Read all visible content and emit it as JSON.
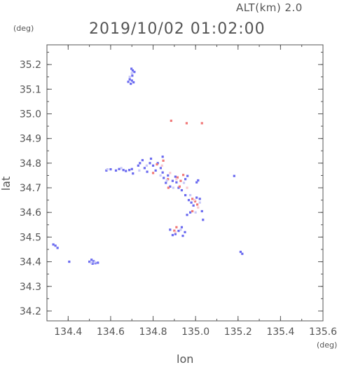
{
  "chart_data": {
    "type": "scatter",
    "title": "2019/10/02 01:02:00",
    "altitude_label": "ALT(km)  2.0",
    "xlabel": "lon",
    "ylabel": "lat",
    "xunit": "(deg)",
    "yunit": "(deg)",
    "xlim": [
      134.3,
      135.6
    ],
    "ylim": [
      34.16,
      35.28
    ],
    "xticks": [
      "134.4",
      "134.6",
      "134.8",
      "135.0",
      "135.2",
      "135.4",
      "135.6"
    ],
    "yticks": [
      "34.2",
      "34.3",
      "34.4",
      "34.5",
      "34.6",
      "34.7",
      "34.8",
      "34.9",
      "35.0",
      "35.1",
      "35.2"
    ],
    "colors": {
      "blue": "#6a6af0",
      "red": "#f07878",
      "pale_blue": "#c8c8f8",
      "pink": "#f8c8d0",
      "axis": "#555555"
    },
    "series": [
      {
        "color": "blue",
        "points": [
          [
            134.698,
            35.183
          ],
          [
            134.704,
            35.176
          ],
          [
            134.712,
            35.17
          ],
          [
            134.702,
            35.155
          ],
          [
            134.69,
            35.14
          ],
          [
            134.7,
            35.135
          ],
          [
            134.708,
            35.128
          ],
          [
            134.695,
            35.122
          ],
          [
            134.683,
            35.13
          ],
          [
            134.58,
            34.77
          ],
          [
            134.6,
            34.775
          ],
          [
            134.625,
            34.77
          ],
          [
            134.64,
            34.776
          ],
          [
            134.66,
            34.772
          ],
          [
            134.672,
            34.768
          ],
          [
            134.688,
            34.772
          ],
          [
            134.7,
            34.776
          ],
          [
            134.705,
            34.758
          ],
          [
            134.73,
            34.79
          ],
          [
            134.738,
            34.8
          ],
          [
            134.75,
            34.812
          ],
          [
            134.76,
            34.78
          ],
          [
            134.772,
            34.765
          ],
          [
            134.785,
            34.8
          ],
          [
            134.79,
            34.818
          ],
          [
            134.8,
            34.79
          ],
          [
            134.812,
            34.77
          ],
          [
            134.822,
            34.8
          ],
          [
            134.836,
            34.78
          ],
          [
            134.845,
            34.762
          ],
          [
            134.85,
            34.74
          ],
          [
            134.86,
            34.72
          ],
          [
            134.87,
            34.75
          ],
          [
            134.88,
            34.705
          ],
          [
            134.892,
            34.728
          ],
          [
            134.905,
            34.745
          ],
          [
            134.91,
            34.722
          ],
          [
            134.92,
            34.7
          ],
          [
            134.935,
            34.69
          ],
          [
            134.952,
            34.735
          ],
          [
            134.962,
            34.748
          ],
          [
            134.952,
            34.67
          ],
          [
            134.968,
            34.65
          ],
          [
            134.98,
            34.64
          ],
          [
            134.99,
            34.628
          ],
          [
            135.005,
            34.66
          ],
          [
            135.02,
            34.655
          ],
          [
            135.03,
            34.605
          ],
          [
            135.035,
            34.57
          ],
          [
            134.975,
            34.6
          ],
          [
            134.96,
            34.59
          ],
          [
            134.88,
            34.53
          ],
          [
            134.892,
            34.508
          ],
          [
            134.905,
            34.512
          ],
          [
            134.92,
            34.525
          ],
          [
            134.935,
            34.54
          ],
          [
            134.95,
            34.52
          ],
          [
            134.94,
            34.505
          ],
          [
            135.182,
            34.748
          ],
          [
            135.212,
            34.44
          ],
          [
            135.22,
            34.432
          ],
          [
            134.33,
            34.47
          ],
          [
            134.34,
            34.465
          ],
          [
            134.35,
            34.456
          ],
          [
            134.405,
            34.4
          ],
          [
            134.5,
            34.4
          ],
          [
            134.51,
            34.408
          ],
          [
            134.52,
            34.402
          ],
          [
            134.515,
            34.392
          ],
          [
            134.528,
            34.394
          ],
          [
            134.54,
            34.396
          ],
          [
            135.012,
            34.73
          ],
          [
            135.005,
            34.722
          ],
          [
            134.845,
            34.826
          ]
        ]
      },
      {
        "color": "red",
        "points": [
          [
            134.885,
            34.972
          ],
          [
            135.03,
            34.962
          ],
          [
            134.848,
            34.81
          ],
          [
            134.818,
            34.795
          ],
          [
            134.87,
            34.735
          ],
          [
            134.915,
            34.742
          ],
          [
            134.93,
            34.728
          ],
          [
            134.942,
            34.752
          ],
          [
            134.925,
            34.705
          ],
          [
            134.985,
            34.655
          ],
          [
            134.998,
            34.645
          ],
          [
            135.008,
            34.632
          ],
          [
            134.985,
            34.605
          ],
          [
            134.91,
            34.54
          ],
          [
            134.9,
            34.526
          ],
          [
            134.958,
            34.962
          ],
          [
            134.8,
            34.76
          ],
          [
            134.872,
            34.7
          ]
        ]
      },
      {
        "color": "pale_blue",
        "points": [
          [
            134.585,
            34.775
          ],
          [
            134.65,
            34.78
          ],
          [
            134.735,
            34.77
          ],
          [
            134.77,
            34.79
          ],
          [
            134.835,
            34.75
          ],
          [
            134.865,
            34.73
          ],
          [
            134.895,
            34.7
          ],
          [
            134.945,
            34.72
          ],
          [
            134.975,
            34.67
          ],
          [
            135.02,
            34.64
          ],
          [
            135.0,
            34.6
          ],
          [
            134.93,
            34.53
          ],
          [
            134.525,
            34.398
          ],
          [
            134.508,
            34.396
          ],
          [
            134.7,
            35.165
          ],
          [
            134.69,
            35.15
          ]
        ]
      },
      {
        "color": "pink",
        "points": [
          [
            134.91,
            34.735
          ],
          [
            134.96,
            34.7
          ],
          [
            134.995,
            34.65
          ],
          [
            135.012,
            34.62
          ],
          [
            134.905,
            34.52
          ],
          [
            134.842,
            34.79
          ],
          [
            134.88,
            34.76
          ]
        ]
      }
    ]
  }
}
